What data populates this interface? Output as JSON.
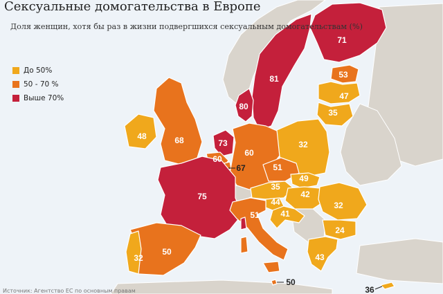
{
  "title": "Сексуальные домогательства в Европе",
  "subtitle": "Доля женщин, хотя бы раз в жизни подвергшихся сексуальным домогательствам (%)",
  "legend": [
    {
      "label": "До 50%",
      "color": "#f0a81c"
    },
    {
      "label": "50 - 70 %",
      "color": "#e8731d"
    },
    {
      "label": "Выше 70%",
      "color": "#c4203b"
    }
  ],
  "colors": {
    "low": "#f0a81c",
    "mid": "#e8731d",
    "high": "#c4203b",
    "land": "#d9d4cc",
    "sea": "#eef3f8"
  },
  "chart_data": {
    "type": "choropleth",
    "regions": [
      {
        "country": "Финляндия",
        "value": 71,
        "band": "high"
      },
      {
        "country": "Швеция",
        "value": 81,
        "band": "high"
      },
      {
        "country": "Дания",
        "value": 80,
        "band": "high"
      },
      {
        "country": "Эстония",
        "value": 53,
        "band": "mid"
      },
      {
        "country": "Латвия",
        "value": 47,
        "band": "low"
      },
      {
        "country": "Литва",
        "value": 35,
        "band": "low"
      },
      {
        "country": "Ирландия",
        "value": 48,
        "band": "low"
      },
      {
        "country": "Великобритания",
        "value": 68,
        "band": "mid"
      },
      {
        "country": "Нидерланды",
        "value": 73,
        "band": "high"
      },
      {
        "country": "Бельгия",
        "value": 60,
        "band": "mid"
      },
      {
        "country": "Люксембург",
        "value": 67,
        "band": "mid"
      },
      {
        "country": "Германия",
        "value": 60,
        "band": "mid"
      },
      {
        "country": "Польша",
        "value": 32,
        "band": "low"
      },
      {
        "country": "Чехия",
        "value": 51,
        "band": "mid"
      },
      {
        "country": "Франция",
        "value": 75,
        "band": "high"
      },
      {
        "country": "Австрия",
        "value": 35,
        "band": "low"
      },
      {
        "country": "Словакия",
        "value": 49,
        "band": "low"
      },
      {
        "country": "Венгрия",
        "value": 42,
        "band": "low"
      },
      {
        "country": "Словения",
        "value": 44,
        "band": "low"
      },
      {
        "country": "Хорватия",
        "value": 41,
        "band": "low"
      },
      {
        "country": "Румыния",
        "value": 32,
        "band": "low"
      },
      {
        "country": "Болгария",
        "value": 24,
        "band": "low"
      },
      {
        "country": "Италия",
        "value": 51,
        "band": "mid"
      },
      {
        "country": "Испания",
        "value": 50,
        "band": "mid"
      },
      {
        "country": "Португалия",
        "value": 32,
        "band": "low"
      },
      {
        "country": "Греция",
        "value": 43,
        "band": "low"
      },
      {
        "country": "Мальта",
        "value": 50,
        "band": "mid"
      },
      {
        "country": "Кипр",
        "value": 36,
        "band": "low"
      }
    ]
  },
  "footer": "Источник: Агентство ЕС по основным правам"
}
